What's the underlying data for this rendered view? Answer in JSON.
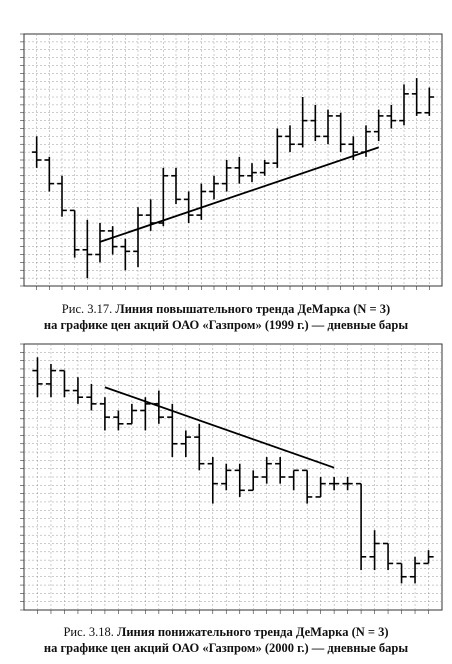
{
  "figures": [
    {
      "caption": {
        "lead": "Рис. 3.17.",
        "title": "Линия повышательного тренда ДеМарка (N = 3)",
        "line2": "на графике цен акций ОАО «Газпром» (1999 г.) — дневные бары"
      }
    },
    {
      "caption": {
        "lead": "Рис. 3.18.",
        "title": "Линия понижательного тренда ДеМарка (N = 3)",
        "line2": "на графике цен акций ОАО «Газпром» (2000 г.) — дневные бары"
      }
    }
  ],
  "chart_data": [
    {
      "type": "ohlc",
      "ylim": [
        2.7,
        4.3
      ],
      "grid": true,
      "bars": [
        {
          "o": 3.55,
          "h": 3.65,
          "l": 3.45,
          "c": 3.5
        },
        {
          "o": 3.5,
          "h": 3.52,
          "l": 3.3,
          "c": 3.35
        },
        {
          "o": 3.35,
          "h": 3.4,
          "l": 3.14,
          "c": 3.18
        },
        {
          "o": 3.18,
          "h": 3.18,
          "l": 2.88,
          "c": 2.93
        },
        {
          "o": 2.93,
          "h": 3.12,
          "l": 2.75,
          "c": 2.9
        },
        {
          "o": 2.9,
          "h": 3.1,
          "l": 2.85,
          "c": 3.05
        },
        {
          "o": 3.05,
          "h": 3.08,
          "l": 2.9,
          "c": 2.95
        },
        {
          "o": 2.95,
          "h": 3.0,
          "l": 2.8,
          "c": 2.92
        },
        {
          "o": 2.92,
          "h": 3.2,
          "l": 2.82,
          "c": 3.15
        },
        {
          "o": 3.15,
          "h": 3.25,
          "l": 3.05,
          "c": 3.1
        },
        {
          "o": 3.1,
          "h": 3.45,
          "l": 3.08,
          "c": 3.4
        },
        {
          "o": 3.4,
          "h": 3.45,
          "l": 3.22,
          "c": 3.25
        },
        {
          "o": 3.25,
          "h": 3.3,
          "l": 3.1,
          "c": 3.15
        },
        {
          "o": 3.15,
          "h": 3.35,
          "l": 3.12,
          "c": 3.3
        },
        {
          "o": 3.3,
          "h": 3.4,
          "l": 3.25,
          "c": 3.35
        },
        {
          "o": 3.35,
          "h": 3.5,
          "l": 3.3,
          "c": 3.45
        },
        {
          "o": 3.45,
          "h": 3.52,
          "l": 3.35,
          "c": 3.4
        },
        {
          "o": 3.4,
          "h": 3.48,
          "l": 3.36,
          "c": 3.42
        },
        {
          "o": 3.42,
          "h": 3.5,
          "l": 3.4,
          "c": 3.48
        },
        {
          "o": 3.48,
          "h": 3.7,
          "l": 3.45,
          "c": 3.65
        },
        {
          "o": 3.65,
          "h": 3.72,
          "l": 3.55,
          "c": 3.6
        },
        {
          "o": 3.6,
          "h": 3.9,
          "l": 3.58,
          "c": 3.75
        },
        {
          "o": 3.75,
          "h": 3.85,
          "l": 3.62,
          "c": 3.65
        },
        {
          "o": 3.65,
          "h": 3.82,
          "l": 3.6,
          "c": 3.78
        },
        {
          "o": 3.78,
          "h": 3.8,
          "l": 3.55,
          "c": 3.6
        },
        {
          "o": 3.6,
          "h": 3.65,
          "l": 3.5,
          "c": 3.55
        },
        {
          "o": 3.55,
          "h": 3.72,
          "l": 3.52,
          "c": 3.68
        },
        {
          "o": 3.68,
          "h": 3.82,
          "l": 3.62,
          "c": 3.78
        },
        {
          "o": 3.78,
          "h": 3.85,
          "l": 3.7,
          "c": 3.75
        },
        {
          "o": 3.75,
          "h": 3.98,
          "l": 3.72,
          "c": 3.92
        },
        {
          "o": 3.92,
          "h": 4.02,
          "l": 3.78,
          "c": 3.8
        },
        {
          "o": 3.8,
          "h": 3.96,
          "l": 3.78,
          "c": 3.9
        }
      ],
      "trendline": {
        "from": [
          5,
          2.98
        ],
        "to": [
          27,
          3.58
        ]
      }
    },
    {
      "type": "ohlc",
      "ylim": [
        0.66,
        1.06
      ],
      "grid": true,
      "bars": [
        {
          "o": 1.02,
          "h": 1.04,
          "l": 0.98,
          "c": 1.0
        },
        {
          "o": 1.0,
          "h": 1.03,
          "l": 0.98,
          "c": 1.02
        },
        {
          "o": 1.02,
          "h": 1.02,
          "l": 0.98,
          "c": 0.99
        },
        {
          "o": 0.99,
          "h": 1.01,
          "l": 0.97,
          "c": 0.98
        },
        {
          "o": 0.98,
          "h": 1.0,
          "l": 0.96,
          "c": 0.97
        },
        {
          "o": 0.97,
          "h": 0.98,
          "l": 0.93,
          "c": 0.95
        },
        {
          "o": 0.95,
          "h": 0.96,
          "l": 0.93,
          "c": 0.94
        },
        {
          "o": 0.94,
          "h": 0.97,
          "l": 0.94,
          "c": 0.96
        },
        {
          "o": 0.96,
          "h": 0.98,
          "l": 0.93,
          "c": 0.97
        },
        {
          "o": 0.97,
          "h": 0.99,
          "l": 0.94,
          "c": 0.95
        },
        {
          "o": 0.95,
          "h": 0.97,
          "l": 0.89,
          "c": 0.91
        },
        {
          "o": 0.91,
          "h": 0.93,
          "l": 0.89,
          "c": 0.92
        },
        {
          "o": 0.92,
          "h": 0.94,
          "l": 0.87,
          "c": 0.88
        },
        {
          "o": 0.88,
          "h": 0.89,
          "l": 0.82,
          "c": 0.85
        },
        {
          "o": 0.85,
          "h": 0.88,
          "l": 0.84,
          "c": 0.87
        },
        {
          "o": 0.87,
          "h": 0.88,
          "l": 0.83,
          "c": 0.84
        },
        {
          "o": 0.84,
          "h": 0.87,
          "l": 0.84,
          "c": 0.86
        },
        {
          "o": 0.86,
          "h": 0.89,
          "l": 0.85,
          "c": 0.88
        },
        {
          "o": 0.88,
          "h": 0.89,
          "l": 0.85,
          "c": 0.86
        },
        {
          "o": 0.86,
          "h": 0.87,
          "l": 0.84,
          "c": 0.87
        },
        {
          "o": 0.87,
          "h": 0.87,
          "l": 0.82,
          "c": 0.83
        },
        {
          "o": 0.83,
          "h": 0.86,
          "l": 0.83,
          "c": 0.85
        },
        {
          "o": 0.85,
          "h": 0.86,
          "l": 0.84,
          "c": 0.85
        },
        {
          "o": 0.85,
          "h": 0.86,
          "l": 0.84,
          "c": 0.85
        },
        {
          "o": 0.85,
          "h": 0.85,
          "l": 0.72,
          "c": 0.74
        },
        {
          "o": 0.74,
          "h": 0.78,
          "l": 0.72,
          "c": 0.76
        },
        {
          "o": 0.76,
          "h": 0.76,
          "l": 0.72,
          "c": 0.73
        },
        {
          "o": 0.73,
          "h": 0.73,
          "l": 0.7,
          "c": 0.71
        },
        {
          "o": 0.71,
          "h": 0.74,
          "l": 0.7,
          "c": 0.73
        },
        {
          "o": 0.73,
          "h": 0.75,
          "l": 0.73,
          "c": 0.74
        }
      ],
      "trendline": {
        "from": [
          5,
          0.995
        ],
        "to": [
          22,
          0.874
        ]
      }
    }
  ]
}
